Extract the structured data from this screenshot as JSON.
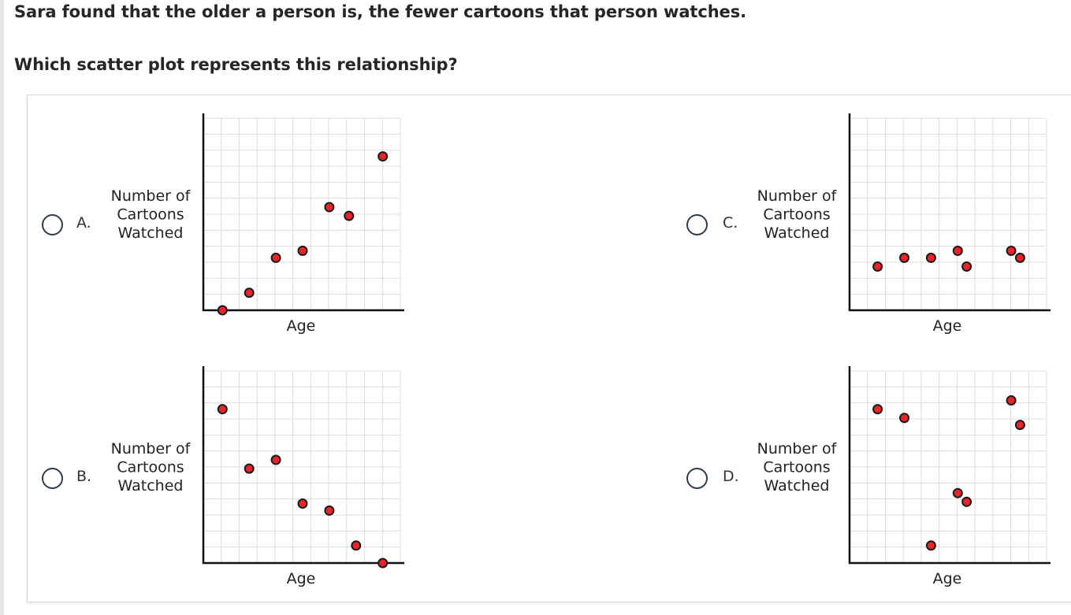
{
  "question": {
    "line1": "Sara found that the older a person is, the fewer cartoons that person watches.",
    "line2": "Which scatter plot represents this relationship?"
  },
  "choices": [
    {
      "letter": "A.",
      "selected": false
    },
    {
      "letter": "B.",
      "selected": false
    },
    {
      "letter": "C.",
      "selected": false
    },
    {
      "letter": "D.",
      "selected": false
    }
  ],
  "colors": {
    "point_fill": "#e8232a",
    "point_stroke": "#1a1a1a",
    "grid": "#dcdcdc",
    "axis": "#111111",
    "radio_border": "#2f3a4a"
  },
  "chart_data": [
    {
      "choice": "A.",
      "type": "scatter",
      "xlabel": "Age",
      "ylabel": "Number of Cartoons Watched",
      "grid": true,
      "xlim": [
        0,
        10
      ],
      "ylim": [
        0,
        10
      ],
      "points": [
        [
          0.5,
          0
        ],
        [
          2,
          1
        ],
        [
          3.5,
          3
        ],
        [
          5,
          3.4
        ],
        [
          6.5,
          5.9
        ],
        [
          7.6,
          5.4
        ],
        [
          9.5,
          8.8
        ]
      ]
    },
    {
      "choice": "B.",
      "type": "scatter",
      "xlabel": "Age",
      "ylabel": "Number of Cartoons Watched",
      "grid": true,
      "xlim": [
        0,
        10
      ],
      "ylim": [
        0,
        10
      ],
      "points": [
        [
          0.5,
          8.8
        ],
        [
          2,
          5.4
        ],
        [
          3.5,
          5.9
        ],
        [
          5,
          3.4
        ],
        [
          6.5,
          3
        ],
        [
          8,
          1
        ],
        [
          9.5,
          0
        ]
      ]
    },
    {
      "choice": "C.",
      "type": "scatter",
      "xlabel": "Age",
      "ylabel": "Number of Cartoons Watched",
      "grid": true,
      "xlim": [
        0,
        10
      ],
      "ylim": [
        0,
        10
      ],
      "points": [
        [
          1,
          2.5
        ],
        [
          2.5,
          3
        ],
        [
          4,
          3
        ],
        [
          5.5,
          3.4
        ],
        [
          6,
          2.5
        ],
        [
          8.5,
          3.4
        ],
        [
          9,
          3
        ]
      ]
    },
    {
      "choice": "D.",
      "type": "scatter",
      "xlabel": "Age",
      "ylabel": "Number of Cartoons Watched",
      "grid": true,
      "xlim": [
        0,
        10
      ],
      "ylim": [
        0,
        10
      ],
      "points": [
        [
          1,
          8.8
        ],
        [
          2.5,
          8.3
        ],
        [
          4,
          1
        ],
        [
          5.5,
          4
        ],
        [
          6,
          3.5
        ],
        [
          8.5,
          9.3
        ],
        [
          9,
          7.9
        ]
      ]
    }
  ]
}
